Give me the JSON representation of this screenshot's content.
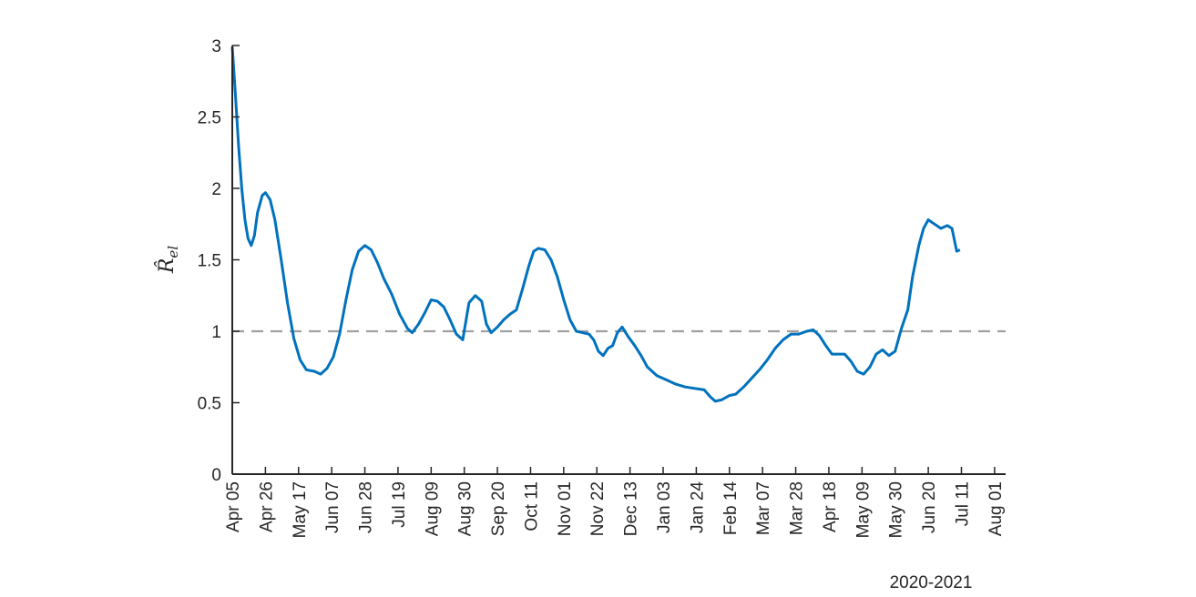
{
  "chart_data": {
    "type": "line",
    "title": "",
    "xlabel": "2020-2021",
    "ylabel": "R̂el",
    "ylabel_parts": {
      "main": "R̂",
      "sub": "el"
    },
    "ylim": [
      0,
      3
    ],
    "yticks": [
      {
        "value": 0,
        "label": "0"
      },
      {
        "value": 0.5,
        "label": "0.5"
      },
      {
        "value": 1,
        "label": "1"
      },
      {
        "value": 1.5,
        "label": "1.5"
      },
      {
        "value": 2,
        "label": "2"
      },
      {
        "value": 2.5,
        "label": "2.5"
      },
      {
        "value": 3,
        "label": "3"
      }
    ],
    "xlim": [
      "2020-04-05",
      "2021-08-08"
    ],
    "xticks": [
      {
        "date": "2020-04-05",
        "label": "Apr 05"
      },
      {
        "date": "2020-04-26",
        "label": "Apr 26"
      },
      {
        "date": "2020-05-17",
        "label": "May 17"
      },
      {
        "date": "2020-06-07",
        "label": "Jun 07"
      },
      {
        "date": "2020-06-28",
        "label": "Jun 28"
      },
      {
        "date": "2020-07-19",
        "label": "Jul 19"
      },
      {
        "date": "2020-08-09",
        "label": "Aug 09"
      },
      {
        "date": "2020-08-30",
        "label": "Aug 30"
      },
      {
        "date": "2020-09-20",
        "label": "Sep 20"
      },
      {
        "date": "2020-10-11",
        "label": "Oct 11"
      },
      {
        "date": "2020-11-01",
        "label": "Nov 01"
      },
      {
        "date": "2020-11-22",
        "label": "Nov 22"
      },
      {
        "date": "2020-12-13",
        "label": "Dec 13"
      },
      {
        "date": "2021-01-03",
        "label": "Jan 03"
      },
      {
        "date": "2021-01-24",
        "label": "Jan 24"
      },
      {
        "date": "2021-02-14",
        "label": "Feb 14"
      },
      {
        "date": "2021-03-07",
        "label": "Mar 07"
      },
      {
        "date": "2021-03-28",
        "label": "Mar 28"
      },
      {
        "date": "2021-04-18",
        "label": "Apr 18"
      },
      {
        "date": "2021-05-09",
        "label": "May 09"
      },
      {
        "date": "2021-05-30",
        "label": "May 30"
      },
      {
        "date": "2021-06-20",
        "label": "Jun 20"
      },
      {
        "date": "2021-07-11",
        "label": "Jul 11"
      },
      {
        "date": "2021-08-01",
        "label": "Aug 01"
      }
    ],
    "reference_line": {
      "y": 1,
      "style": "dashed",
      "color": "#a0a0a0"
    },
    "grid": false,
    "series": [
      {
        "color": "#0072bd",
        "points": [
          [
            "2020-04-05",
            2.99
          ],
          [
            "2020-04-07",
            2.65
          ],
          [
            "2020-04-09",
            2.3
          ],
          [
            "2020-04-11",
            2.0
          ],
          [
            "2020-04-13",
            1.78
          ],
          [
            "2020-04-15",
            1.65
          ],
          [
            "2020-04-17",
            1.6
          ],
          [
            "2020-04-19",
            1.67
          ],
          [
            "2020-04-21",
            1.83
          ],
          [
            "2020-04-24",
            1.95
          ],
          [
            "2020-04-26",
            1.97
          ],
          [
            "2020-04-29",
            1.92
          ],
          [
            "2020-05-02",
            1.78
          ],
          [
            "2020-05-06",
            1.5
          ],
          [
            "2020-05-10",
            1.2
          ],
          [
            "2020-05-14",
            0.95
          ],
          [
            "2020-05-18",
            0.8
          ],
          [
            "2020-05-22",
            0.73
          ],
          [
            "2020-05-27",
            0.72
          ],
          [
            "2020-05-31",
            0.7
          ],
          [
            "2020-06-04",
            0.74
          ],
          [
            "2020-06-08",
            0.82
          ],
          [
            "2020-06-12",
            0.98
          ],
          [
            "2020-06-16",
            1.22
          ],
          [
            "2020-06-20",
            1.43
          ],
          [
            "2020-06-24",
            1.56
          ],
          [
            "2020-06-28",
            1.6
          ],
          [
            "2020-07-02",
            1.57
          ],
          [
            "2020-07-06",
            1.48
          ],
          [
            "2020-07-10",
            1.37
          ],
          [
            "2020-07-15",
            1.26
          ],
          [
            "2020-07-20",
            1.12
          ],
          [
            "2020-07-25",
            1.02
          ],
          [
            "2020-07-28",
            0.99
          ],
          [
            "2020-08-01",
            1.05
          ],
          [
            "2020-08-05",
            1.13
          ],
          [
            "2020-08-09",
            1.22
          ],
          [
            "2020-08-13",
            1.21
          ],
          [
            "2020-08-17",
            1.17
          ],
          [
            "2020-08-21",
            1.08
          ],
          [
            "2020-08-25",
            0.98
          ],
          [
            "2020-08-29",
            0.94
          ],
          [
            "2020-09-02",
            1.2
          ],
          [
            "2020-09-06",
            1.25
          ],
          [
            "2020-09-10",
            1.21
          ],
          [
            "2020-09-13",
            1.05
          ],
          [
            "2020-09-16",
            0.99
          ],
          [
            "2020-09-20",
            1.03
          ],
          [
            "2020-09-24",
            1.08
          ],
          [
            "2020-09-28",
            1.12
          ],
          [
            "2020-10-02",
            1.15
          ],
          [
            "2020-10-06",
            1.3
          ],
          [
            "2020-10-10",
            1.46
          ],
          [
            "2020-10-13",
            1.56
          ],
          [
            "2020-10-16",
            1.58
          ],
          [
            "2020-10-20",
            1.57
          ],
          [
            "2020-10-24",
            1.5
          ],
          [
            "2020-10-28",
            1.38
          ],
          [
            "2020-11-01",
            1.22
          ],
          [
            "2020-11-05",
            1.08
          ],
          [
            "2020-11-09",
            1.0
          ],
          [
            "2020-11-13",
            0.99
          ],
          [
            "2020-11-17",
            0.98
          ],
          [
            "2020-11-20",
            0.94
          ],
          [
            "2020-11-23",
            0.86
          ],
          [
            "2020-11-26",
            0.83
          ],
          [
            "2020-11-29",
            0.88
          ],
          [
            "2020-12-02",
            0.9
          ],
          [
            "2020-12-05",
            0.99
          ],
          [
            "2020-12-08",
            1.03
          ],
          [
            "2020-12-12",
            0.96
          ],
          [
            "2020-12-16",
            0.9
          ],
          [
            "2020-12-20",
            0.83
          ],
          [
            "2020-12-24",
            0.75
          ],
          [
            "2020-12-30",
            0.69
          ],
          [
            "2021-01-05",
            0.66
          ],
          [
            "2021-01-11",
            0.63
          ],
          [
            "2021-01-17",
            0.61
          ],
          [
            "2021-01-23",
            0.6
          ],
          [
            "2021-01-29",
            0.59
          ],
          [
            "2021-02-02",
            0.54
          ],
          [
            "2021-02-05",
            0.51
          ],
          [
            "2021-02-09",
            0.52
          ],
          [
            "2021-02-14",
            0.55
          ],
          [
            "2021-02-18",
            0.56
          ],
          [
            "2021-02-23",
            0.61
          ],
          [
            "2021-02-28",
            0.67
          ],
          [
            "2021-03-05",
            0.73
          ],
          [
            "2021-03-10",
            0.8
          ],
          [
            "2021-03-15",
            0.88
          ],
          [
            "2021-03-20",
            0.94
          ],
          [
            "2021-03-25",
            0.98
          ],
          [
            "2021-03-30",
            0.98
          ],
          [
            "2021-04-04",
            1.0
          ],
          [
            "2021-04-08",
            1.01
          ],
          [
            "2021-04-12",
            0.97
          ],
          [
            "2021-04-16",
            0.9
          ],
          [
            "2021-04-20",
            0.84
          ],
          [
            "2021-04-24",
            0.84
          ],
          [
            "2021-04-28",
            0.84
          ],
          [
            "2021-05-02",
            0.79
          ],
          [
            "2021-05-06",
            0.72
          ],
          [
            "2021-05-10",
            0.7
          ],
          [
            "2021-05-14",
            0.75
          ],
          [
            "2021-05-18",
            0.84
          ],
          [
            "2021-05-22",
            0.87
          ],
          [
            "2021-05-26",
            0.83
          ],
          [
            "2021-05-30",
            0.86
          ],
          [
            "2021-06-03",
            1.02
          ],
          [
            "2021-06-07",
            1.15
          ],
          [
            "2021-06-10",
            1.38
          ],
          [
            "2021-06-14",
            1.6
          ],
          [
            "2021-06-17",
            1.72
          ],
          [
            "2021-06-20",
            1.78
          ],
          [
            "2021-06-24",
            1.75
          ],
          [
            "2021-06-28",
            1.72
          ],
          [
            "2021-07-02",
            1.74
          ],
          [
            "2021-07-05",
            1.72
          ],
          [
            "2021-07-08",
            1.56
          ],
          [
            "2021-07-10",
            1.57
          ]
        ]
      }
    ]
  }
}
